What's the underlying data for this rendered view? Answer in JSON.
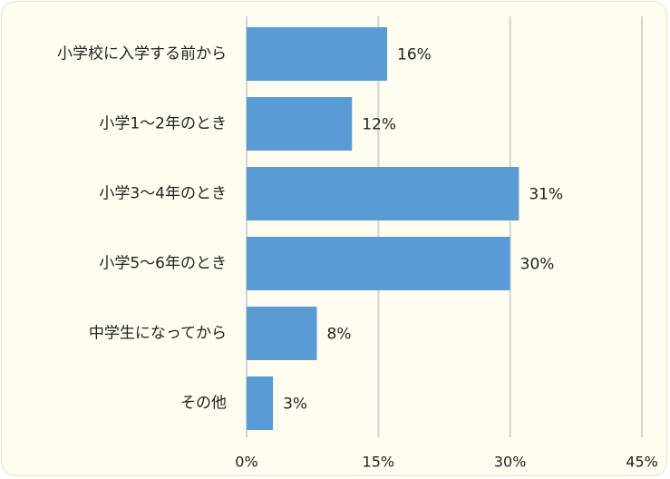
{
  "chart_data": {
    "type": "bar",
    "orientation": "horizontal",
    "categories": [
      "小学校に入学する前から",
      "小学1～2年のとき",
      "小学3～4年のとき",
      "小学5～6年のとき",
      "中学生になってから",
      "その他"
    ],
    "values": [
      16,
      12,
      31,
      30,
      8,
      3
    ],
    "value_labels": [
      "16%",
      "12%",
      "31%",
      "30%",
      "8%",
      "3%"
    ],
    "x_ticks": [
      0,
      15,
      30,
      45
    ],
    "x_tick_labels": [
      "0%",
      "15%",
      "30%",
      "45%"
    ],
    "xlim": [
      0,
      45
    ],
    "grid": true,
    "legend": "none",
    "bar_color": "#5b9bd5",
    "background_color": "#fefdf0"
  }
}
